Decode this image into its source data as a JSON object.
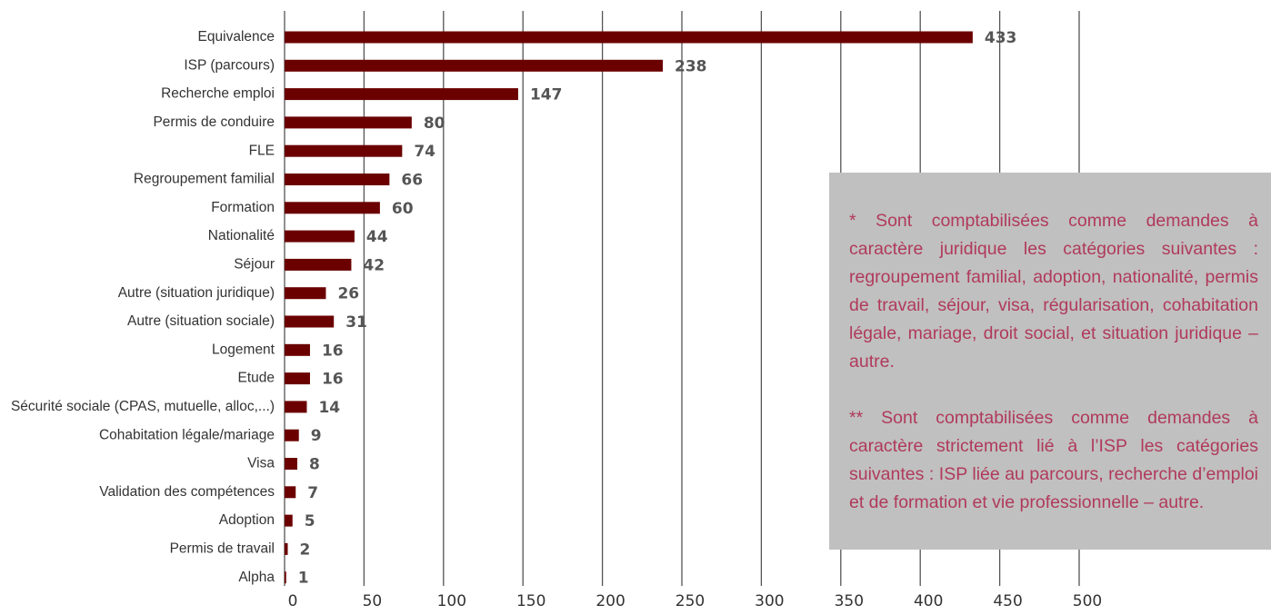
{
  "chart_data": {
    "type": "bar",
    "orientation": "horizontal",
    "categories": [
      "Equivalence",
      "ISP (parcours)",
      "Recherche emploi",
      "Permis de conduire",
      "FLE",
      "Regroupement familial",
      "Formation",
      "Nationalité",
      "Séjour",
      "Autre (situation juridique)",
      "Autre (situation sociale)",
      "Logement",
      "Etude",
      "Sécurité sociale (CPAS, mutuelle, alloc,...)",
      "Cohabitation légale/mariage",
      "Visa",
      "Validation des compétences",
      "Adoption",
      "Permis de travail",
      "Alpha"
    ],
    "values": [
      433,
      238,
      147,
      80,
      74,
      66,
      60,
      44,
      42,
      26,
      31,
      16,
      16,
      14,
      9,
      8,
      7,
      5,
      2,
      1
    ],
    "color": "#6b0000",
    "xlim": [
      0,
      500
    ],
    "xticks": [
      0,
      50,
      100,
      150,
      200,
      250,
      300,
      350,
      400,
      450,
      500
    ],
    "grid": true,
    "annotations": [
      "* Sont comptabilisées comme demandes à caractère juridique les catégories suivantes : regroupement familial, adoption, nationalité, permis de travail, séjour, visa, régularisation, cohabitation légale, mariage, droit social, et situation juridique – autre.",
      "** Sont comptabilisées comme demandes à caractère strictement lié à l’ISP les catégories suivantes : ISP liée au parcours, recherche d’emploi et de formation et vie professionnelle – autre."
    ]
  }
}
